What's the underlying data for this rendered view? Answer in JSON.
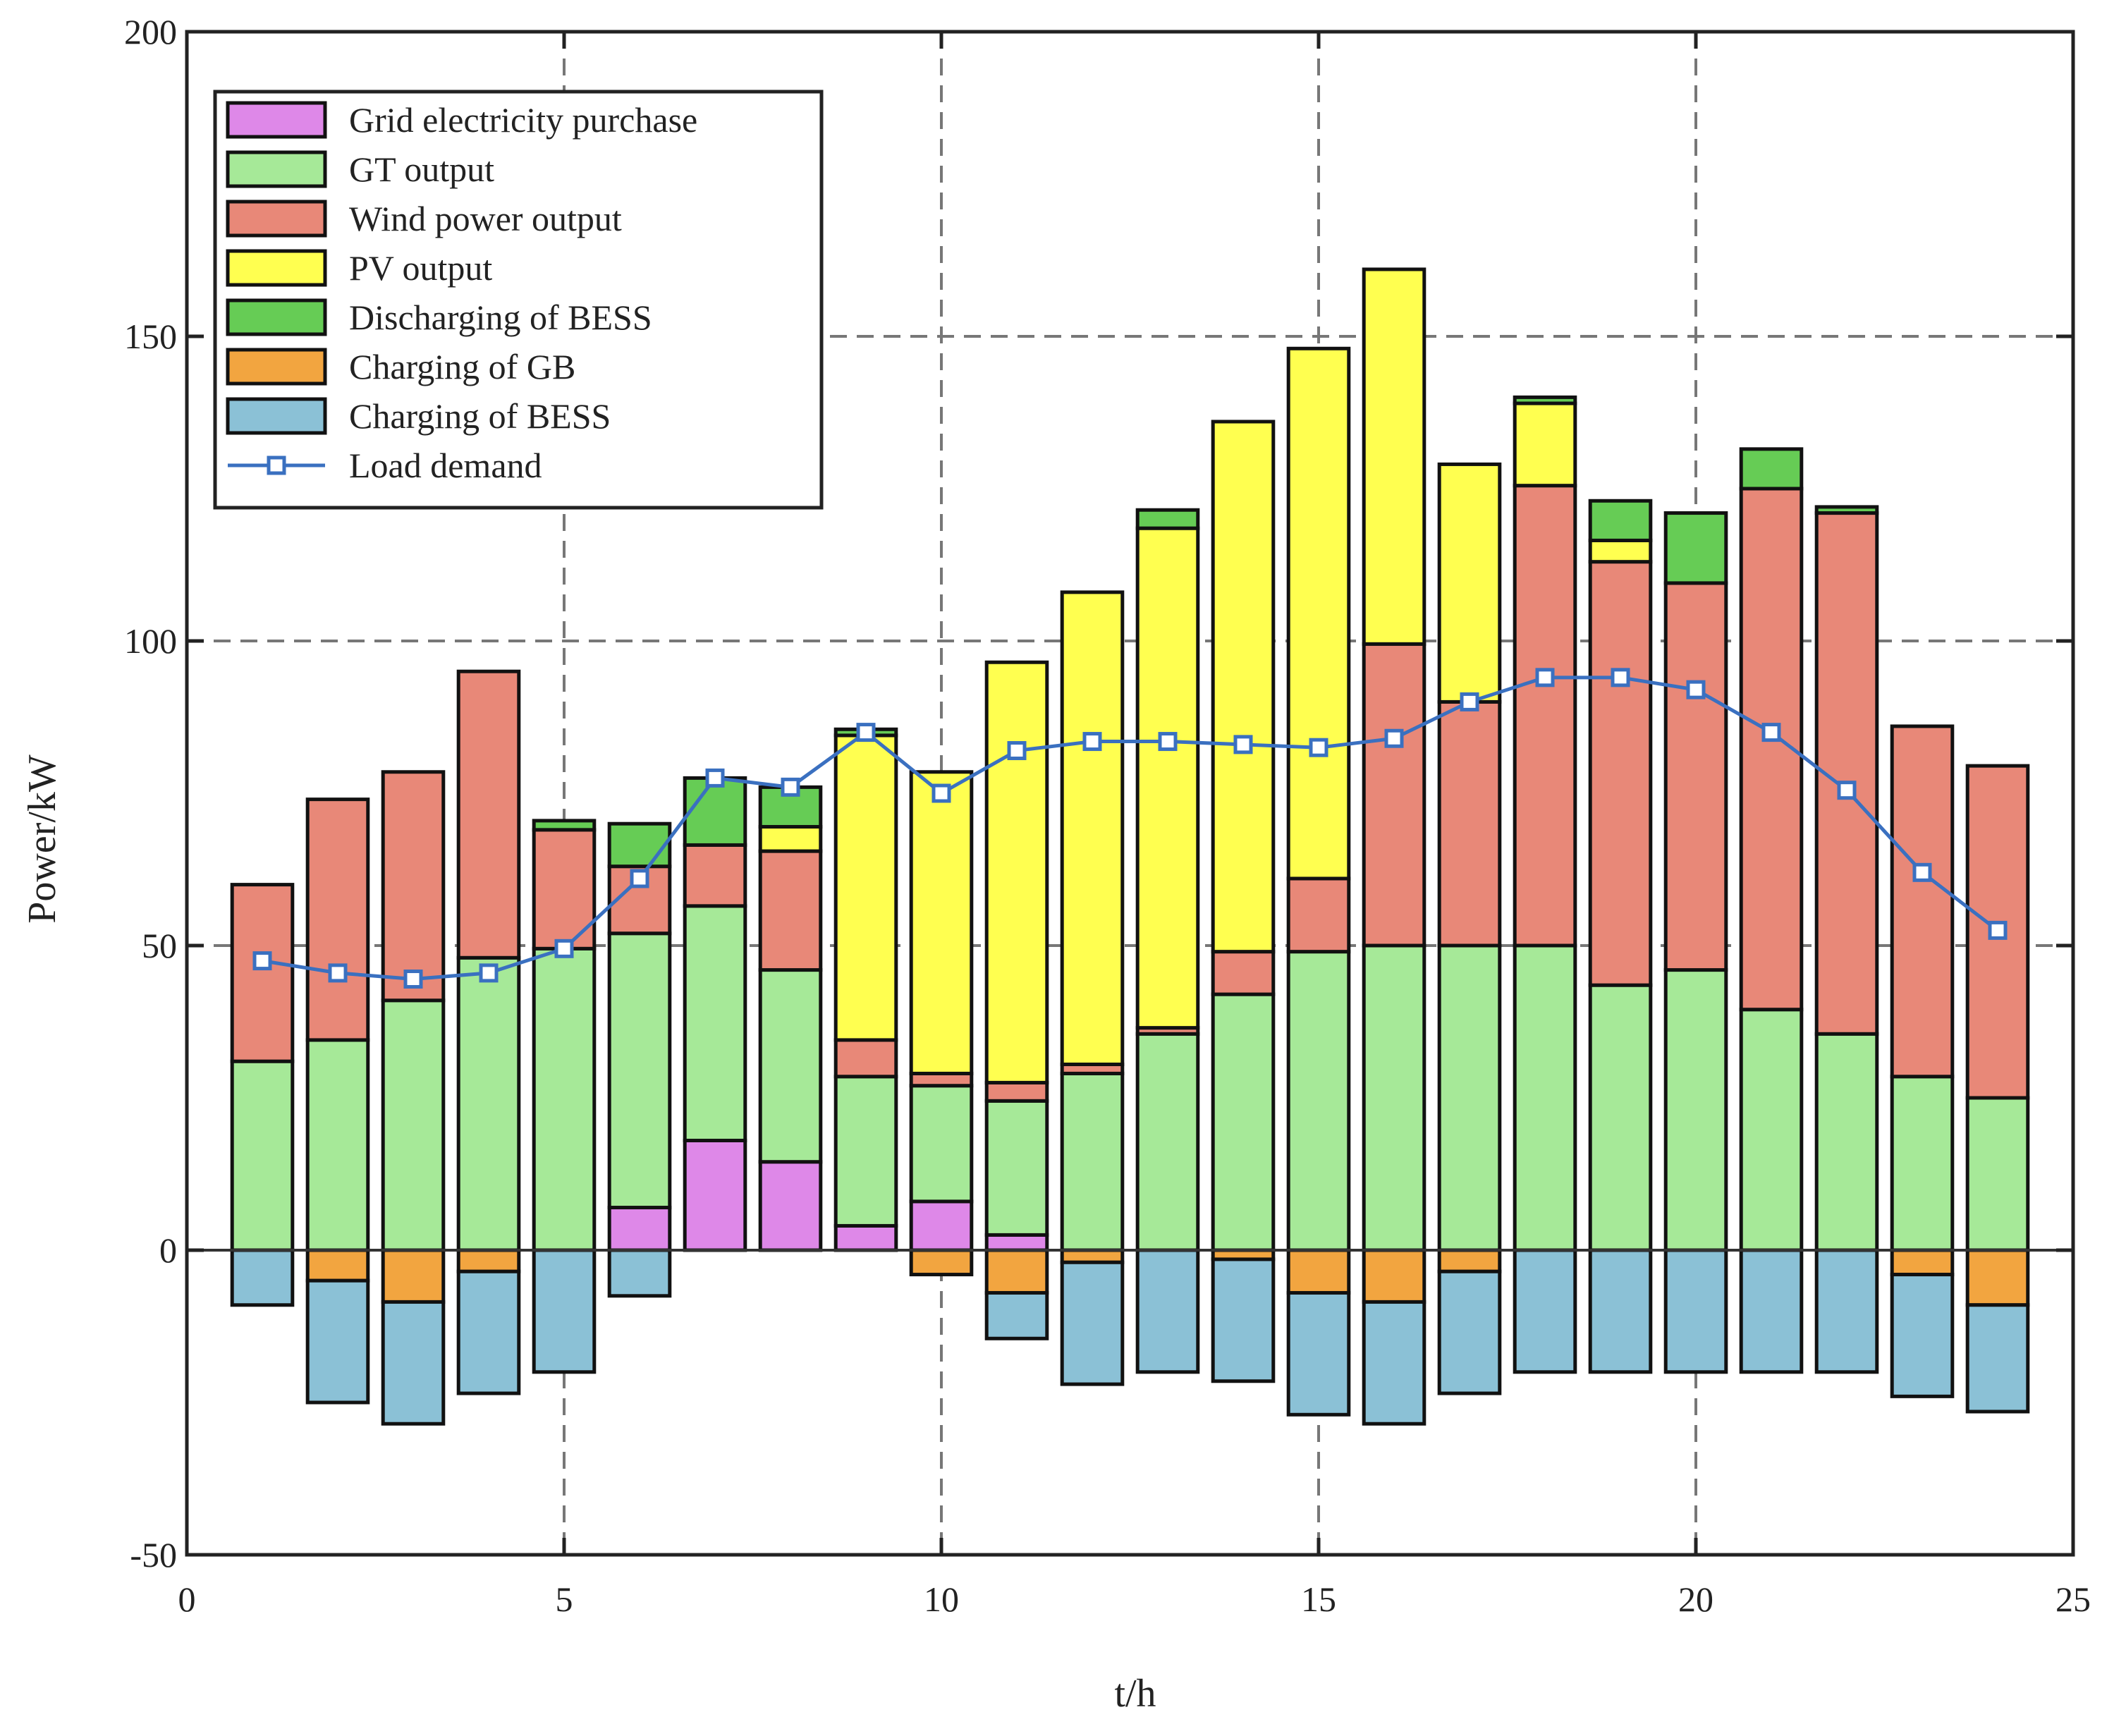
{
  "chart_data": {
    "type": "bar",
    "stacked": true,
    "title": "",
    "xlabel": "t/h",
    "ylabel": "Power/kW",
    "xlim": [
      0,
      25
    ],
    "ylim": [
      -50,
      200
    ],
    "xticks": [
      "0",
      "5",
      "10",
      "15",
      "20",
      "25"
    ],
    "yticks": [
      "-50",
      "0",
      "50",
      "100",
      "150",
      "200"
    ],
    "grid": true,
    "grid_style": "dashed",
    "legend_position": "top-left",
    "x": [
      1,
      2,
      3,
      4,
      5,
      6,
      7,
      8,
      9,
      10,
      11,
      12,
      13,
      14,
      15,
      16,
      17,
      18,
      19,
      20,
      21,
      22,
      23,
      24
    ],
    "series": [
      {
        "name": "Grid electricity purchase",
        "color": "#de88e8",
        "values": [
          0,
          0,
          0,
          0,
          0,
          7,
          18,
          14.5,
          4,
          8,
          2.5,
          0,
          0,
          0,
          0,
          0,
          0,
          0,
          0,
          0,
          0,
          0,
          0,
          0
        ]
      },
      {
        "name": "GT output",
        "color": "#a6e998",
        "values": [
          31,
          34.5,
          41,
          48,
          49.5,
          45,
          38.5,
          31.5,
          24.5,
          19,
          22,
          29,
          35.5,
          42,
          49,
          50,
          50,
          50,
          43.5,
          46,
          39.5,
          35.5,
          28.5,
          25
        ]
      },
      {
        "name": "Wind power output",
        "color": "#e88878",
        "values": [
          29,
          39.5,
          37.5,
          47,
          19.5,
          11,
          10,
          19.5,
          6,
          2,
          3,
          1.5,
          1,
          7,
          12,
          49.5,
          40,
          75.5,
          69.5,
          63.5,
          85.5,
          85.5,
          57.5,
          54.5
        ]
      },
      {
        "name": "PV output",
        "color": "#ffff50",
        "values": [
          0,
          0,
          0,
          0,
          0,
          0,
          0,
          4,
          50,
          49.5,
          69,
          77.5,
          82,
          87,
          87,
          61.5,
          39,
          13.5,
          3.5,
          0,
          0,
          0,
          0,
          0
        ]
      },
      {
        "name": "Discharging of BESS",
        "color": "#66cc55",
        "values": [
          0,
          0,
          0,
          0,
          1.5,
          7,
          11,
          6.5,
          1,
          0,
          0,
          0,
          3,
          0,
          0,
          0,
          0,
          1,
          6.5,
          11.5,
          6.5,
          1,
          0,
          0
        ]
      },
      {
        "name": "Charging of GB",
        "color": "#f2a540",
        "values": [
          0,
          -5,
          -8.5,
          -3.5,
          0,
          0,
          0,
          0,
          0,
          -4,
          -7,
          -2,
          0,
          -1.5,
          -7,
          -8.5,
          -3.5,
          0,
          0,
          0,
          0,
          0,
          -4,
          -9
        ]
      },
      {
        "name": "Charging of BESS",
        "color": "#8bc1d6",
        "values": [
          -9,
          -20,
          -20,
          -20,
          -20,
          -7.5,
          0,
          0,
          0,
          0,
          -7.5,
          -20,
          -20,
          -20,
          -20,
          -20,
          -20,
          -20,
          -20,
          -20,
          -20,
          -20,
          -20,
          -17.5
        ]
      }
    ],
    "line": {
      "name": "Load demand",
      "color": "#3a70c0",
      "values": [
        47.5,
        45.5,
        44.5,
        45.5,
        49.5,
        61,
        77.5,
        76,
        85,
        75,
        82,
        83.5,
        83.5,
        83,
        82.5,
        84,
        90,
        94,
        94,
        92,
        85,
        75.5,
        62,
        52.5
      ]
    }
  }
}
